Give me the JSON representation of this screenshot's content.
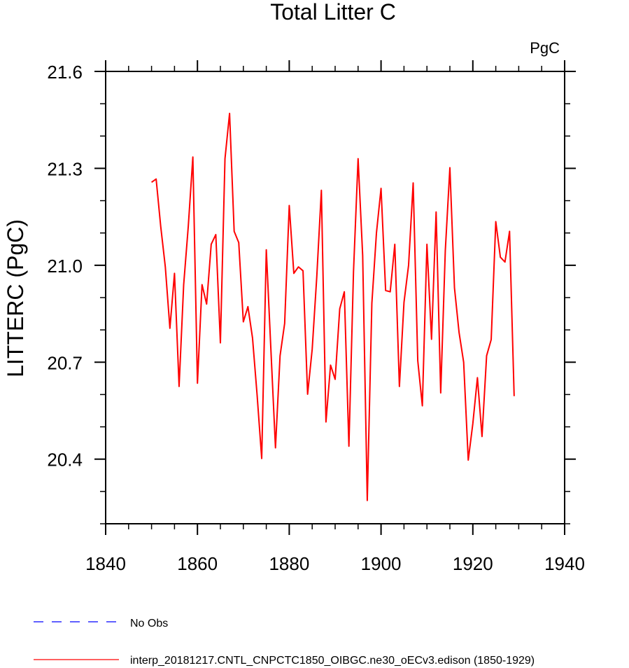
{
  "chart_data": {
    "type": "line",
    "title": "Total Litter C",
    "units": "PgC",
    "xlabel": "",
    "ylabel": "LITTERC  (PgC)",
    "xlim": [
      1840,
      1940
    ],
    "ylim": [
      20.2,
      21.6
    ],
    "xticks": [
      1840,
      1860,
      1880,
      1900,
      1920,
      1940
    ],
    "xtick_labels": [
      "1840",
      "1860",
      "1880",
      "1900",
      "1920",
      "1940"
    ],
    "yticks": [
      20.4,
      20.7,
      21.0,
      21.3,
      21.6
    ],
    "ytick_labels": [
      "20.4",
      "20.7",
      "21.0",
      "21.3",
      "21.6"
    ],
    "grid": false,
    "legend_position": "bottom-left",
    "series": [
      {
        "name": "No Obs",
        "color": "#0000ff",
        "dash": "dashed",
        "x": [],
        "values": []
      },
      {
        "name": "interp_20181217.CNTL_CNPCTC1850_OIBGC.ne30_oECv3.edison (1850-1929)",
        "color": "#ff0000",
        "dash": "solid",
        "x": [
          1850,
          1851,
          1852,
          1853,
          1854,
          1855,
          1856,
          1857,
          1858,
          1859,
          1860,
          1861,
          1862,
          1863,
          1864,
          1865,
          1866,
          1867,
          1868,
          1869,
          1870,
          1871,
          1872,
          1873,
          1874,
          1875,
          1876,
          1877,
          1878,
          1879,
          1880,
          1881,
          1882,
          1883,
          1884,
          1885,
          1886,
          1887,
          1888,
          1889,
          1890,
          1891,
          1892,
          1893,
          1894,
          1895,
          1896,
          1897,
          1898,
          1899,
          1900,
          1901,
          1902,
          1903,
          1904,
          1905,
          1906,
          1907,
          1908,
          1909,
          1910,
          1911,
          1912,
          1913,
          1914,
          1915,
          1916,
          1917,
          1918,
          1919,
          1920,
          1921,
          1922,
          1923,
          1924,
          1925,
          1926,
          1927,
          1928,
          1929
        ],
        "values": [
          21.257,
          21.267,
          21.12,
          20.995,
          20.805,
          20.975,
          20.625,
          20.94,
          21.12,
          21.335,
          20.635,
          20.94,
          20.88,
          21.065,
          21.095,
          20.76,
          21.33,
          21.47,
          21.105,
          21.07,
          20.825,
          20.872,
          20.775,
          20.598,
          20.402,
          21.048,
          20.74,
          20.435,
          20.72,
          20.82,
          21.185,
          20.975,
          20.995,
          20.983,
          20.601,
          20.74,
          20.965,
          21.232,
          20.515,
          20.691,
          20.647,
          20.865,
          20.918,
          20.44,
          20.98,
          21.33,
          21.03,
          20.272,
          20.882,
          21.1,
          21.238,
          20.922,
          20.918,
          21.065,
          20.625,
          20.885,
          21.0,
          21.255,
          20.705,
          20.565,
          21.065,
          20.771,
          21.165,
          20.605,
          21.045,
          21.302,
          20.93,
          20.792,
          20.7,
          20.397,
          20.51,
          20.652,
          20.47,
          20.72,
          20.77,
          21.135,
          21.025,
          21.01,
          21.105,
          20.595
        ]
      }
    ]
  }
}
